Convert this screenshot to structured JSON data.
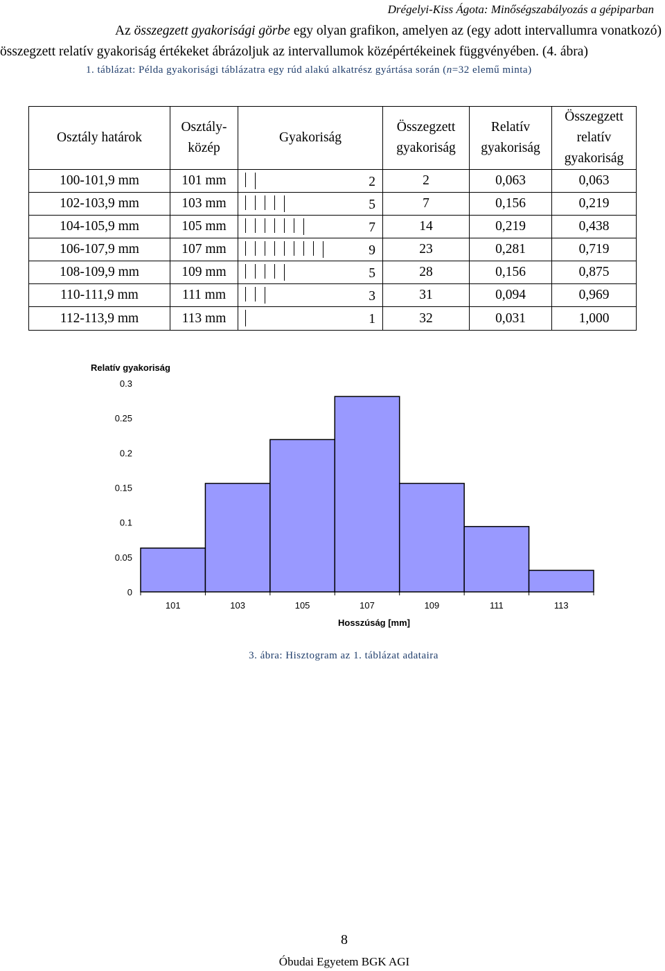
{
  "running_header": "Drégelyi-Kiss Ágota: Minőségszabályozás a gépiparban",
  "intro": {
    "line1_prefix": "Az ",
    "line1_term": "összegzett gyakorisági görbe",
    "line1_suffix": " egy olyan grafikon, amelyen az (egy adott intervallumra vonatkozó)",
    "line2": "összegzett relatív gyakoriság értékeket ábrázoljuk az intervallumok középértékeinek függvényében. (4. ábra)"
  },
  "table_caption_prefix": "1. táblázat: Példa gyakorisági táblázatra egy rúd alakú alkatrész gyártása során (",
  "table_caption_n": "n",
  "table_caption_suffix": "=32 elemű minta)",
  "table": {
    "headers": {
      "bounds": "Osztály határok",
      "mid_1": "Osztály-",
      "mid_2": "közép",
      "freq": "Gyakoriság",
      "cum_1": "Összegzett",
      "cum_2": "gyakoriság",
      "rel_1": "Relatív",
      "rel_2": "gyakoriság",
      "cumrel_1": "Összegzett",
      "cumrel_2": "relatív",
      "cumrel_3": "gyakoriság"
    },
    "rows": [
      {
        "bounds": "100-101,9 mm",
        "mid": "101 mm",
        "freq": "2",
        "cum": "2",
        "rel": "0,063",
        "cumrel": "0,063"
      },
      {
        "bounds": "102-103,9 mm",
        "mid": "103 mm",
        "freq": "5",
        "cum": "7",
        "rel": "0,156",
        "cumrel": "0,219"
      },
      {
        "bounds": "104-105,9 mm",
        "mid": "105 mm",
        "freq": "7",
        "cum": "14",
        "rel": "0,219",
        "cumrel": "0,438"
      },
      {
        "bounds": "106-107,9 mm",
        "mid": "107 mm",
        "freq": "9",
        "cum": "23",
        "rel": "0,281",
        "cumrel": "0,719"
      },
      {
        "bounds": "108-109,9 mm",
        "mid": "109 mm",
        "freq": "5",
        "cum": "28",
        "rel": "0,156",
        "cumrel": "0,875"
      },
      {
        "bounds": "110-111,9 mm",
        "mid": "111 mm",
        "freq": "3",
        "cum": "31",
        "rel": "0,094",
        "cumrel": "0,969"
      },
      {
        "bounds": "112-113,9 mm",
        "mid": "113 mm",
        "freq": "1",
        "cum": "32",
        "rel": "0,031",
        "cumrel": "1,000"
      }
    ]
  },
  "chart_data": {
    "type": "bar",
    "title": "",
    "ylabel": "Relatív gyakoriság",
    "xlabel": "Hosszúság [mm]",
    "categories": [
      "101",
      "103",
      "105",
      "107",
      "109",
      "111",
      "113"
    ],
    "values": [
      0.063,
      0.156,
      0.219,
      0.281,
      0.156,
      0.094,
      0.031
    ],
    "ylim": [
      0,
      0.3
    ],
    "yticks": [
      "0",
      "0.05",
      "0.1",
      "0.15",
      "0.2",
      "0.25",
      "0.3"
    ],
    "bar_color": "#9999ff",
    "grid": false,
    "legend": "none"
  },
  "figure_caption": "3. ábra: Hisztogram az 1. táblázat adataira",
  "page_number": "8",
  "footer": "Óbudai Egyetem BGK AGI"
}
